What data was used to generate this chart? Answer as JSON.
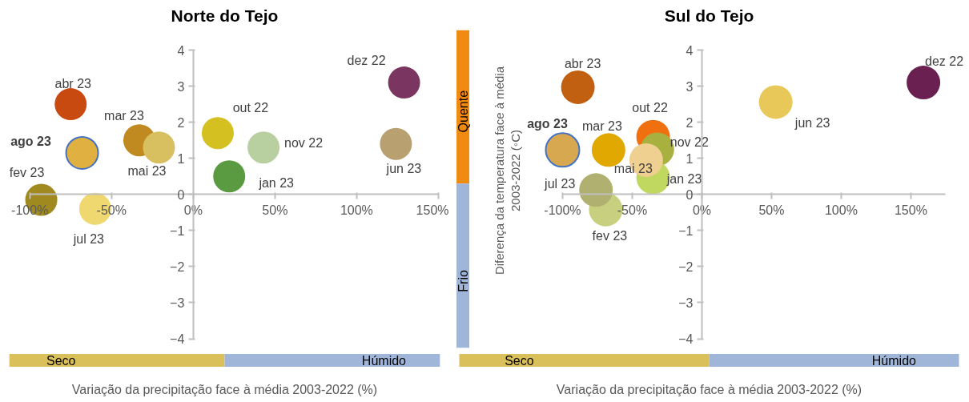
{
  "chart_data": [
    {
      "type": "scatter",
      "title": "Norte do Tejo",
      "xlabel": "Variação da precipitação face à média 2003-2022 (%)",
      "annotations": [
        "Seco",
        "Húmido"
      ],
      "marker": "circle",
      "xlim": [
        -100,
        150
      ],
      "xticks": [
        {
          "value": -100,
          "label": "-100%"
        },
        {
          "value": -50,
          "label": "-50%"
        },
        {
          "value": 0,
          "label": "0%"
        },
        {
          "value": 50,
          "label": "50%"
        },
        {
          "value": 100,
          "label": "100%"
        },
        {
          "value": 150,
          "label": "150%"
        }
      ],
      "ylim": [
        -4,
        4
      ],
      "yticks": [
        -4,
        -3,
        -2,
        -1,
        0,
        1,
        2,
        3,
        4
      ],
      "series": [
        {
          "name": "out 22",
          "color": "#d4c020",
          "x": [
            15
          ],
          "values": [
            1.7
          ]
        },
        {
          "name": "nov 22",
          "color": "#b8d0a0",
          "x": [
            43
          ],
          "values": [
            1.3
          ]
        },
        {
          "name": "dez 22",
          "color": "#7a3560",
          "x": [
            129
          ],
          "values": [
            3.1
          ]
        },
        {
          "name": "jan 23",
          "color": "#5a9a40",
          "x": [
            22
          ],
          "values": [
            0.5
          ]
        },
        {
          "name": "fev 23",
          "color": "#a08a20",
          "x": [
            -93
          ],
          "values": [
            -0.15
          ]
        },
        {
          "name": "mar 23",
          "color": "#c08a20",
          "x": [
            -33
          ],
          "values": [
            1.5
          ]
        },
        {
          "name": "abr 23",
          "color": "#c84a10",
          "x": [
            -75
          ],
          "values": [
            2.5
          ]
        },
        {
          "name": "mai 23",
          "color": "#d8c060",
          "x": [
            -21
          ],
          "values": [
            1.3
          ]
        },
        {
          "name": "jun 23",
          "color": "#b8a070",
          "x": [
            124
          ],
          "values": [
            1.4
          ]
        },
        {
          "name": "jul 23",
          "color": "#f0d870",
          "x": [
            -60
          ],
          "values": [
            -0.4
          ]
        },
        {
          "name": "ago 23",
          "color": "#e0b040",
          "x": [
            -68
          ],
          "values": [
            1.15
          ]
        }
      ]
    },
    {
      "type": "scatter",
      "title": "Sul do Tejo",
      "xlabel": "Variação da precipitação face à média 2003-2022 (%)",
      "ylabel": "Diferença da temperatura face à média\n2003-2022 (◦C)",
      "annotations": [
        "Seco",
        "Húmido",
        "Quente",
        "Frio"
      ],
      "marker": "circle",
      "xlim": [
        -100,
        175
      ],
      "xticks": [
        {
          "value": -100,
          "label": "-100%"
        },
        {
          "value": -50,
          "label": "-50%"
        },
        {
          "value": 0,
          "label": "0%"
        },
        {
          "value": 50,
          "label": "50%"
        },
        {
          "value": 100,
          "label": "100%"
        },
        {
          "value": 150,
          "label": "150%"
        }
      ],
      "ylim": [
        -4,
        4
      ],
      "yticks": [
        -4,
        -3,
        -2,
        -1,
        0,
        1,
        2,
        3,
        4
      ],
      "series": [
        {
          "name": "out 22",
          "color": "#f07010",
          "x": [
            -35
          ],
          "values": [
            1.6
          ]
        },
        {
          "name": "nov 22",
          "color": "#a8b040",
          "x": [
            -32
          ],
          "values": [
            1.25
          ]
        },
        {
          "name": "dez 22",
          "color": "#6a2050",
          "x": [
            159
          ],
          "values": [
            3.1
          ]
        },
        {
          "name": "jan 23",
          "color": "#c0d860",
          "x": [
            -35
          ],
          "values": [
            0.47
          ]
        },
        {
          "name": "fev 23",
          "color": "#c8d080",
          "x": [
            -69
          ],
          "values": [
            -0.42
          ]
        },
        {
          "name": "mar 23",
          "color": "#e0a800",
          "x": [
            -67
          ],
          "values": [
            1.23
          ]
        },
        {
          "name": "abr 23",
          "color": "#c06010",
          "x": [
            -89
          ],
          "values": [
            2.97
          ]
        },
        {
          "name": "mai 23",
          "color": "#f0d090",
          "x": [
            -40
          ],
          "values": [
            0.95
          ]
        },
        {
          "name": "jun 23",
          "color": "#e8c858",
          "x": [
            53
          ],
          "values": [
            2.56
          ]
        },
        {
          "name": "jul 23",
          "color": "#b0b070",
          "x": [
            -76
          ],
          "values": [
            0.12
          ]
        },
        {
          "name": "ago 23",
          "color": "#d8a850",
          "x": [
            -100
          ],
          "values": [
            1.23
          ]
        }
      ]
    }
  ]
}
